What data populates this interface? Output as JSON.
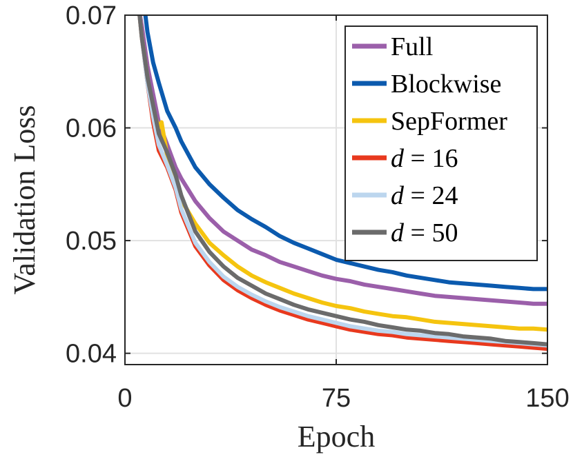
{
  "chart_data": {
    "type": "line",
    "title": "",
    "xlabel": "Epoch",
    "ylabel": "Validation Loss",
    "xlim": [
      0,
      150
    ],
    "ylim": [
      0.039,
      0.07
    ],
    "xticks": [
      0,
      75,
      150
    ],
    "xtick_labels": [
      "0",
      "75",
      "150"
    ],
    "yticks": [
      0.04,
      0.05,
      0.06,
      0.07
    ],
    "ytick_labels": [
      "0.04",
      "0.05",
      "0.06",
      "0.07"
    ],
    "grid": true,
    "legend_position": "top-right",
    "series": [
      {
        "name": "Full",
        "legend_label": "Full",
        "color": "#9B5FAA",
        "points": [
          [
            5,
            0.0705
          ],
          [
            6,
            0.069
          ],
          [
            8,
            0.0655
          ],
          [
            10,
            0.063
          ],
          [
            12,
            0.0605
          ],
          [
            15,
            0.0585
          ],
          [
            18,
            0.0565
          ],
          [
            20,
            0.0555
          ],
          [
            25,
            0.0535
          ],
          [
            30,
            0.052
          ],
          [
            35,
            0.0508
          ],
          [
            40,
            0.05
          ],
          [
            45,
            0.0492
          ],
          [
            50,
            0.0487
          ],
          [
            55,
            0.0481
          ],
          [
            60,
            0.0477
          ],
          [
            65,
            0.0473
          ],
          [
            70,
            0.0469
          ],
          [
            75,
            0.0466
          ],
          [
            80,
            0.0464
          ],
          [
            85,
            0.0461
          ],
          [
            90,
            0.0459
          ],
          [
            95,
            0.0457
          ],
          [
            100,
            0.0455
          ],
          [
            105,
            0.0453
          ],
          [
            110,
            0.0451
          ],
          [
            115,
            0.045
          ],
          [
            120,
            0.0449
          ],
          [
            125,
            0.0448
          ],
          [
            130,
            0.0447
          ],
          [
            135,
            0.0446
          ],
          [
            140,
            0.0445
          ],
          [
            145,
            0.0444
          ],
          [
            150,
            0.0444
          ]
        ]
      },
      {
        "name": "Blockwise",
        "legend_label": "Blockwise",
        "color": "#0B5AAE",
        "points": [
          [
            7,
            0.0705
          ],
          [
            8,
            0.0685
          ],
          [
            10,
            0.0658
          ],
          [
            12,
            0.064
          ],
          [
            15,
            0.0615
          ],
          [
            18,
            0.06
          ],
          [
            20,
            0.0588
          ],
          [
            25,
            0.0565
          ],
          [
            30,
            0.055
          ],
          [
            35,
            0.0538
          ],
          [
            40,
            0.0527
          ],
          [
            45,
            0.0519
          ],
          [
            50,
            0.0512
          ],
          [
            55,
            0.0504
          ],
          [
            60,
            0.0498
          ],
          [
            65,
            0.0493
          ],
          [
            70,
            0.0488
          ],
          [
            75,
            0.0483
          ],
          [
            80,
            0.048
          ],
          [
            85,
            0.0477
          ],
          [
            90,
            0.0474
          ],
          [
            95,
            0.0472
          ],
          [
            100,
            0.0469
          ],
          [
            105,
            0.0467
          ],
          [
            110,
            0.0465
          ],
          [
            115,
            0.0463
          ],
          [
            120,
            0.0462
          ],
          [
            125,
            0.0461
          ],
          [
            130,
            0.046
          ],
          [
            135,
            0.0459
          ],
          [
            140,
            0.0458
          ],
          [
            145,
            0.0457
          ],
          [
            150,
            0.0457
          ]
        ]
      },
      {
        "name": "SepFormer",
        "legend_label": "SepFormer",
        "color": "#F5C40F",
        "points": [
          [
            5,
            0.0705
          ],
          [
            6,
            0.068
          ],
          [
            8,
            0.0645
          ],
          [
            10,
            0.0615
          ],
          [
            12,
            0.06
          ],
          [
            13,
            0.0605
          ],
          [
            15,
            0.0575
          ],
          [
            18,
            0.0548
          ],
          [
            20,
            0.0536
          ],
          [
            25,
            0.0515
          ],
          [
            30,
            0.0498
          ],
          [
            35,
            0.0487
          ],
          [
            40,
            0.0477
          ],
          [
            45,
            0.0469
          ],
          [
            50,
            0.0463
          ],
          [
            55,
            0.0458
          ],
          [
            60,
            0.0453
          ],
          [
            65,
            0.0449
          ],
          [
            70,
            0.0445
          ],
          [
            75,
            0.0442
          ],
          [
            80,
            0.044
          ],
          [
            85,
            0.0437
          ],
          [
            90,
            0.0435
          ],
          [
            95,
            0.0433
          ],
          [
            100,
            0.0432
          ],
          [
            105,
            0.043
          ],
          [
            110,
            0.0428
          ],
          [
            115,
            0.0427
          ],
          [
            120,
            0.0426
          ],
          [
            125,
            0.0425
          ],
          [
            130,
            0.0424
          ],
          [
            135,
            0.0423
          ],
          [
            140,
            0.0422
          ],
          [
            145,
            0.0422
          ],
          [
            150,
            0.0421
          ]
        ]
      },
      {
        "name": "d=16",
        "legend_label": "16",
        "color": "#E8391E",
        "points": [
          [
            5,
            0.0705
          ],
          [
            6,
            0.068
          ],
          [
            8,
            0.064
          ],
          [
            10,
            0.0605
          ],
          [
            12,
            0.058
          ],
          [
            15,
            0.0565
          ],
          [
            18,
            0.0545
          ],
          [
            20,
            0.0525
          ],
          [
            25,
            0.0495
          ],
          [
            30,
            0.0478
          ],
          [
            35,
            0.0465
          ],
          [
            40,
            0.0456
          ],
          [
            45,
            0.0449
          ],
          [
            50,
            0.0443
          ],
          [
            55,
            0.0438
          ],
          [
            60,
            0.0434
          ],
          [
            65,
            0.043
          ],
          [
            70,
            0.0427
          ],
          [
            75,
            0.0424
          ],
          [
            80,
            0.0421
          ],
          [
            85,
            0.0419
          ],
          [
            90,
            0.0417
          ],
          [
            95,
            0.0416
          ],
          [
            100,
            0.0414
          ],
          [
            105,
            0.0413
          ],
          [
            110,
            0.0412
          ],
          [
            115,
            0.0411
          ],
          [
            120,
            0.041
          ],
          [
            125,
            0.0409
          ],
          [
            130,
            0.0408
          ],
          [
            135,
            0.0407
          ],
          [
            140,
            0.0406
          ],
          [
            145,
            0.0405
          ],
          [
            150,
            0.0404
          ]
        ]
      },
      {
        "name": "d=24",
        "legend_label": "24",
        "color": "#BCD6EE",
        "points": [
          [
            5,
            0.0705
          ],
          [
            6,
            0.068
          ],
          [
            8,
            0.064
          ],
          [
            10,
            0.061
          ],
          [
            12,
            0.0585
          ],
          [
            15,
            0.0567
          ],
          [
            18,
            0.0547
          ],
          [
            20,
            0.0528
          ],
          [
            25,
            0.0498
          ],
          [
            30,
            0.0481
          ],
          [
            35,
            0.0468
          ],
          [
            40,
            0.0459
          ],
          [
            45,
            0.0452
          ],
          [
            50,
            0.0446
          ],
          [
            55,
            0.0441
          ],
          [
            60,
            0.0437
          ],
          [
            65,
            0.0433
          ],
          [
            70,
            0.043
          ],
          [
            75,
            0.0427
          ],
          [
            80,
            0.0424
          ],
          [
            85,
            0.0422
          ],
          [
            90,
            0.042
          ],
          [
            95,
            0.0419
          ],
          [
            100,
            0.0417
          ],
          [
            105,
            0.0416
          ],
          [
            110,
            0.0415
          ],
          [
            115,
            0.0414
          ],
          [
            120,
            0.0413
          ],
          [
            125,
            0.0412
          ],
          [
            130,
            0.0411
          ],
          [
            135,
            0.041
          ],
          [
            140,
            0.0409
          ],
          [
            145,
            0.0408
          ],
          [
            150,
            0.0407
          ]
        ]
      },
      {
        "name": "d=50",
        "legend_label": "50",
        "color": "#6B6B6B",
        "points": [
          [
            5,
            0.0705
          ],
          [
            6,
            0.068
          ],
          [
            8,
            0.0645
          ],
          [
            10,
            0.062
          ],
          [
            12,
            0.0595
          ],
          [
            15,
            0.0578
          ],
          [
            18,
            0.0558
          ],
          [
            20,
            0.054
          ],
          [
            25,
            0.0508
          ],
          [
            30,
            0.049
          ],
          [
            35,
            0.0477
          ],
          [
            40,
            0.0467
          ],
          [
            45,
            0.046
          ],
          [
            50,
            0.0453
          ],
          [
            55,
            0.0448
          ],
          [
            60,
            0.0443
          ],
          [
            65,
            0.0439
          ],
          [
            70,
            0.0436
          ],
          [
            75,
            0.0433
          ],
          [
            80,
            0.043
          ],
          [
            85,
            0.0428
          ],
          [
            90,
            0.0425
          ],
          [
            95,
            0.0423
          ],
          [
            100,
            0.0421
          ],
          [
            105,
            0.042
          ],
          [
            110,
            0.0418
          ],
          [
            115,
            0.0417
          ],
          [
            120,
            0.0415
          ],
          [
            125,
            0.0414
          ],
          [
            130,
            0.0413
          ],
          [
            135,
            0.0411
          ],
          [
            140,
            0.041
          ],
          [
            145,
            0.0409
          ],
          [
            150,
            0.0408
          ]
        ]
      }
    ],
    "legend_var": "d",
    "legend_eq": "="
  }
}
